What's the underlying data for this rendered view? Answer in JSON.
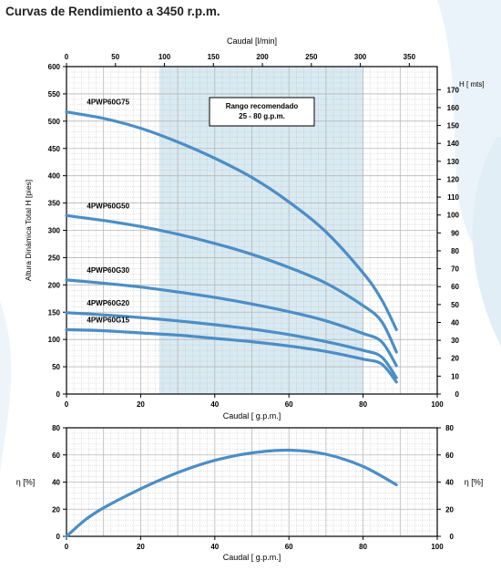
{
  "page": {
    "title": "Curvas de Rendimiento a 3450 r.p.m."
  },
  "colors": {
    "curve": "#4b8ec6",
    "recommended_band": "#d9eaf2",
    "grid": "#b7b7b7",
    "axis": "#000000",
    "background_swoosh": "#cfe3ef"
  },
  "chart_data": [
    {
      "type": "line",
      "title": "Curvas de Rendimiento a 3450 r.p.m.",
      "xlabel": "Caudal [ g.p.m.]",
      "x2label": "Caudal [l/min]",
      "ylabel": "Altura Dinámica Total H [pies]",
      "y2label": "H [ mts]",
      "xlim": [
        0,
        100
      ],
      "x_ticks": [
        0,
        20,
        40,
        60,
        80,
        100
      ],
      "x2lim": [
        0,
        378.5
      ],
      "x2_ticks": [
        0,
        50,
        100,
        150,
        200,
        250,
        300,
        350
      ],
      "ylim": [
        0,
        600
      ],
      "y_ticks": [
        0,
        50,
        100,
        150,
        200,
        250,
        300,
        350,
        400,
        450,
        500,
        550,
        600
      ],
      "y2lim": [
        0,
        182.9
      ],
      "y2_ticks": [
        0,
        10,
        20,
        30,
        40,
        50,
        60,
        70,
        80,
        90,
        100,
        110,
        120,
        130,
        140,
        150,
        160,
        170
      ],
      "grid": true,
      "recommended_range": {
        "label_line1": "Rango recomendado",
        "label_line2": "25 - 80 g.p.m.",
        "x_from": 25,
        "x_to": 80
      },
      "series": [
        {
          "name": "4PWP60G75",
          "x": [
            0,
            10,
            20,
            30,
            40,
            50,
            60,
            70,
            80,
            85,
            89
          ],
          "y": [
            517,
            505,
            487,
            462,
            432,
            397,
            352,
            297,
            222,
            173,
            118
          ]
        },
        {
          "name": "4PWP60G50",
          "x": [
            0,
            10,
            20,
            30,
            40,
            50,
            60,
            70,
            80,
            85,
            89
          ],
          "y": [
            327,
            318,
            307,
            293,
            276,
            256,
            232,
            203,
            162,
            133,
            77
          ]
        },
        {
          "name": "4PWP60G30",
          "x": [
            0,
            10,
            20,
            30,
            40,
            50,
            60,
            70,
            80,
            85,
            89
          ],
          "y": [
            209,
            203,
            196,
            187,
            177,
            165,
            151,
            134,
            111,
            96,
            52
          ]
        },
        {
          "name": "4PWP60G20",
          "x": [
            0,
            10,
            20,
            30,
            40,
            50,
            60,
            70,
            80,
            85,
            89
          ],
          "y": [
            149,
            145,
            140,
            134,
            127,
            119,
            109,
            96,
            80,
            68,
            30
          ]
        },
        {
          "name": "4PWP60G15",
          "x": [
            0,
            10,
            20,
            30,
            40,
            50,
            60,
            70,
            80,
            85,
            89
          ],
          "y": [
            118,
            116,
            112,
            108,
            102,
            96,
            88,
            78,
            64,
            55,
            22
          ]
        }
      ]
    },
    {
      "type": "line",
      "title": "",
      "xlabel": "Caudal [ g.p.m.]",
      "ylabel": "η [%]",
      "y2label": "η [%]",
      "xlim": [
        0,
        100
      ],
      "x_ticks": [
        0,
        20,
        40,
        60,
        80,
        100
      ],
      "ylim": [
        0,
        80
      ],
      "y_ticks": [
        0,
        20,
        40,
        60,
        80
      ],
      "y2_ticks": [
        0,
        20,
        40,
        60,
        80
      ],
      "grid": true,
      "series": [
        {
          "name": "",
          "x": [
            0,
            5,
            10,
            20,
            30,
            40,
            50,
            60,
            70,
            80,
            89
          ],
          "y": [
            0,
            12,
            21,
            35,
            47,
            56,
            61.5,
            63.5,
            60.5,
            51.5,
            38
          ]
        }
      ]
    }
  ]
}
